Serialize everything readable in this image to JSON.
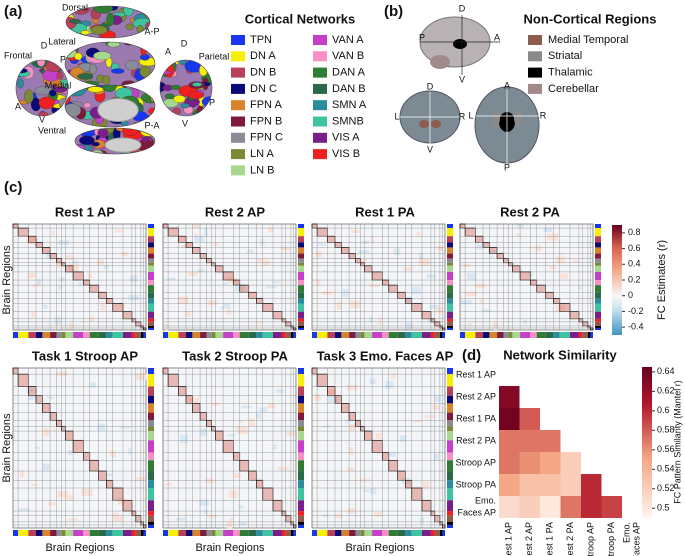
{
  "panel_labels": [
    "(a)",
    "(b)",
    "(c)",
    "(d)"
  ],
  "brain_labels_a": [
    "Dorsal",
    "A-P",
    "Lateral",
    "Frontal",
    "D",
    "P",
    "A",
    "V",
    "Medial",
    "Parietal",
    "A",
    "D",
    "P",
    "V",
    "Ventral",
    "P-A"
  ],
  "brain_labels_b": [
    "D",
    "P",
    "A",
    "V",
    "D",
    "L",
    "R",
    "V",
    "A",
    "L",
    "R",
    "P"
  ],
  "cortical_networks": {
    "title": "Cortical Networks",
    "items": [
      {
        "name": "TPN",
        "color": "#1836f0"
      },
      {
        "name": "DN A",
        "color": "#f5f000"
      },
      {
        "name": "DN B",
        "color": "#b8405a"
      },
      {
        "name": "DN C",
        "color": "#0a0a78"
      },
      {
        "name": "FPN A",
        "color": "#d8842c"
      },
      {
        "name": "FPN B",
        "color": "#7e1a3c"
      },
      {
        "name": "FPN C",
        "color": "#8a8c98"
      },
      {
        "name": "LN A",
        "color": "#7c8a36"
      },
      {
        "name": "LN B",
        "color": "#a8d890"
      },
      {
        "name": "VAN A",
        "color": "#c440c8"
      },
      {
        "name": "VAN B",
        "color": "#f790c4"
      },
      {
        "name": "DAN A",
        "color": "#2e7d32"
      },
      {
        "name": "DAN B",
        "color": "#2a6a4a"
      },
      {
        "name": "SMN A",
        "color": "#2a8c9c"
      },
      {
        "name": "SMNB",
        "color": "#3ec4a0"
      },
      {
        "name": "VIS A",
        "color": "#7a1e8c"
      },
      {
        "name": "VIS B",
        "color": "#f02020"
      }
    ]
  },
  "non_cortical": {
    "title": "Non-Cortical Regions",
    "items": [
      {
        "name": "Medial Temporal",
        "color": "#8c5c4c"
      },
      {
        "name": "Striatal",
        "color": "#8a8a8a"
      },
      {
        "name": "Thalamic",
        "color": "#000000"
      },
      {
        "name": "Cerebellar",
        "color": "#a28a8a"
      }
    ]
  },
  "fc_matrices": {
    "titles": [
      "Rest 1 AP",
      "Rest 2 AP",
      "Rest 1 PA",
      "Rest 2 PA",
      "Task 1 Stroop AP",
      "Task 2 Stroop PA",
      "Task 3 Emo. Faces AP"
    ],
    "y_label": "Brain Regions",
    "x_label": "Brain Regions",
    "colorbar": {
      "label": "FC Estimates (r)",
      "lim": [
        -0.5,
        0.9
      ],
      "ticks": [
        0.8,
        0.6,
        0.4,
        0.2,
        0,
        -0.2,
        -0.4
      ]
    }
  },
  "chart_data": {
    "type": "heatmap",
    "title": "Network Similarity",
    "rows": [
      [
        "Rest 1 AP"
      ],
      [
        "Rest 2 AP"
      ],
      [
        "Rest 1 PA"
      ],
      [
        "Rest 2 PA"
      ],
      [
        "Stroop AP"
      ],
      [
        "Stroop PA"
      ],
      [
        "Emo.",
        "Faces AP"
      ]
    ],
    "columns": [
      [
        "Rest 1 AP"
      ],
      [
        "Rest 2 AP"
      ],
      [
        "Rest 1 PA"
      ],
      [
        "Rest 2 PA"
      ],
      [
        "Stroop AP"
      ],
      [
        "Stroop PA"
      ],
      [
        "Emo.",
        "Faces AP"
      ]
    ],
    "values": [
      [
        null,
        null,
        null,
        null,
        null,
        null,
        null
      ],
      [
        0.63,
        null,
        null,
        null,
        null,
        null,
        null
      ],
      [
        0.64,
        0.58,
        null,
        null,
        null,
        null,
        null
      ],
      [
        0.57,
        0.57,
        0.57,
        null,
        null,
        null,
        null
      ],
      [
        0.57,
        0.56,
        0.55,
        0.52,
        null,
        null,
        null
      ],
      [
        0.55,
        0.53,
        0.53,
        0.52,
        0.6,
        null,
        null
      ],
      [
        0.51,
        0.52,
        0.5,
        0.57,
        0.6,
        0.59,
        null
      ]
    ],
    "colorbar_label": "FC Pattern Similarity (Mantel r)",
    "clim": [
      0.49,
      0.645
    ],
    "cticks": [
      0.5,
      0.52,
      0.54,
      0.56,
      0.58,
      0.6,
      0.62,
      0.64
    ]
  }
}
